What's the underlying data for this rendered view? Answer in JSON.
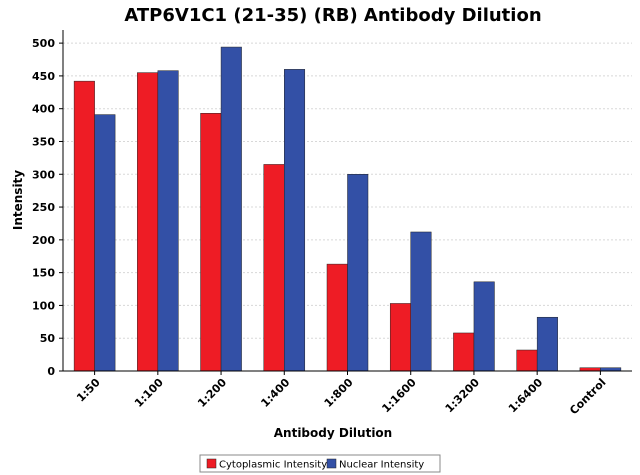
{
  "chart_data": {
    "type": "bar",
    "title": "ATP6V1C1 (21-35) (RB) Antibody Dilution",
    "xlabel": "Antibody Dilution",
    "ylabel": "Intensity",
    "ylim": [
      0,
      520
    ],
    "yticks": [
      0,
      50,
      100,
      150,
      200,
      250,
      300,
      350,
      400,
      450,
      500
    ],
    "grid": true,
    "legend_position": "bottom",
    "categories": [
      "1:50",
      "1:100",
      "1:200",
      "1:400",
      "1:800",
      "1:1600",
      "1:3200",
      "1:6400",
      "Control"
    ],
    "series": [
      {
        "name": "Cytoplasmic Intensity",
        "color": "#ee1c25",
        "values": [
          442,
          455,
          393,
          315,
          163,
          103,
          58,
          32,
          5
        ]
      },
      {
        "name": "Nuclear Intensity",
        "color": "#3350a6",
        "values": [
          391,
          458,
          494,
          460,
          300,
          212,
          136,
          82,
          5
        ]
      }
    ]
  }
}
